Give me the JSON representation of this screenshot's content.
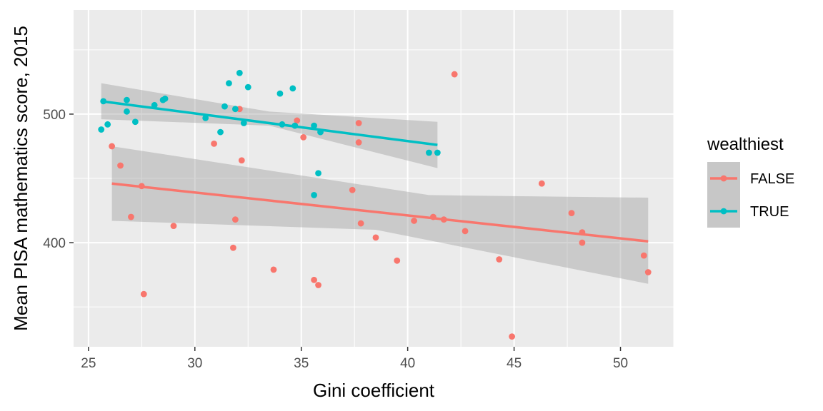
{
  "chart_data": {
    "type": "scatter",
    "title": "",
    "xlabel": "Gini coefficient",
    "ylabel": "Mean PISA mathematics score, 2015",
    "xlim": [
      24.3,
      52.5
    ],
    "ylim": [
      319,
      581
    ],
    "x_ticks": [
      25,
      30,
      35,
      40,
      45,
      50
    ],
    "y_ticks": [
      400,
      500
    ],
    "grid": true,
    "legend": {
      "title": "wealthiest",
      "position": "right"
    },
    "series": [
      {
        "name": "FALSE",
        "color": "#F8766D",
        "points": [
          [
            26.1,
            475
          ],
          [
            26.5,
            460
          ],
          [
            27.0,
            420
          ],
          [
            27.5,
            444
          ],
          [
            27.6,
            360
          ],
          [
            29.0,
            413
          ],
          [
            30.9,
            477
          ],
          [
            31.8,
            396
          ],
          [
            31.9,
            418
          ],
          [
            32.1,
            504
          ],
          [
            32.2,
            464
          ],
          [
            33.7,
            379
          ],
          [
            34.8,
            495
          ],
          [
            35.1,
            482
          ],
          [
            35.6,
            371
          ],
          [
            35.8,
            367
          ],
          [
            37.4,
            441
          ],
          [
            37.7,
            493
          ],
          [
            37.7,
            478
          ],
          [
            37.8,
            415
          ],
          [
            38.5,
            404
          ],
          [
            39.5,
            386
          ],
          [
            40.3,
            417
          ],
          [
            41.2,
            420
          ],
          [
            41.7,
            418
          ],
          [
            42.2,
            531
          ],
          [
            42.7,
            409
          ],
          [
            44.3,
            387
          ],
          [
            44.9,
            327
          ],
          [
            46.3,
            446
          ],
          [
            47.7,
            423
          ],
          [
            48.2,
            408
          ],
          [
            48.2,
            400
          ],
          [
            51.1,
            390
          ],
          [
            51.3,
            377
          ]
        ],
        "fit": {
          "x": [
            26.1,
            51.3
          ],
          "y": [
            446,
            401
          ]
        },
        "band_upper": [
          [
            26.1,
            475
          ],
          [
            41.0,
            437
          ],
          [
            51.3,
            435
          ]
        ],
        "band_lower": [
          [
            26.1,
            417
          ],
          [
            38.5,
            410
          ],
          [
            51.3,
            368
          ]
        ]
      },
      {
        "name": "TRUE",
        "color": "#00BFC4",
        "points": [
          [
            25.6,
            488
          ],
          [
            25.7,
            510
          ],
          [
            25.9,
            492
          ],
          [
            26.8,
            511
          ],
          [
            26.8,
            502
          ],
          [
            27.2,
            494
          ],
          [
            28.1,
            507
          ],
          [
            28.5,
            511
          ],
          [
            28.6,
            512
          ],
          [
            30.5,
            497
          ],
          [
            31.2,
            486
          ],
          [
            31.4,
            506
          ],
          [
            31.6,
            524
          ],
          [
            31.9,
            504
          ],
          [
            32.1,
            532
          ],
          [
            32.3,
            493
          ],
          [
            32.5,
            521
          ],
          [
            34.0,
            516
          ],
          [
            34.1,
            492
          ],
          [
            34.6,
            520
          ],
          [
            34.7,
            491
          ],
          [
            35.6,
            491
          ],
          [
            35.6,
            437
          ],
          [
            35.8,
            454
          ],
          [
            35.9,
            486
          ],
          [
            41.0,
            470
          ],
          [
            41.4,
            470
          ]
        ],
        "fit": {
          "x": [
            25.6,
            41.4
          ],
          "y": [
            510,
            476
          ]
        },
        "band_upper": [
          [
            25.6,
            524
          ],
          [
            33.5,
            502
          ],
          [
            41.4,
            494
          ]
        ],
        "band_lower": [
          [
            25.6,
            496
          ],
          [
            33.5,
            491
          ],
          [
            41.4,
            458
          ]
        ]
      }
    ]
  }
}
